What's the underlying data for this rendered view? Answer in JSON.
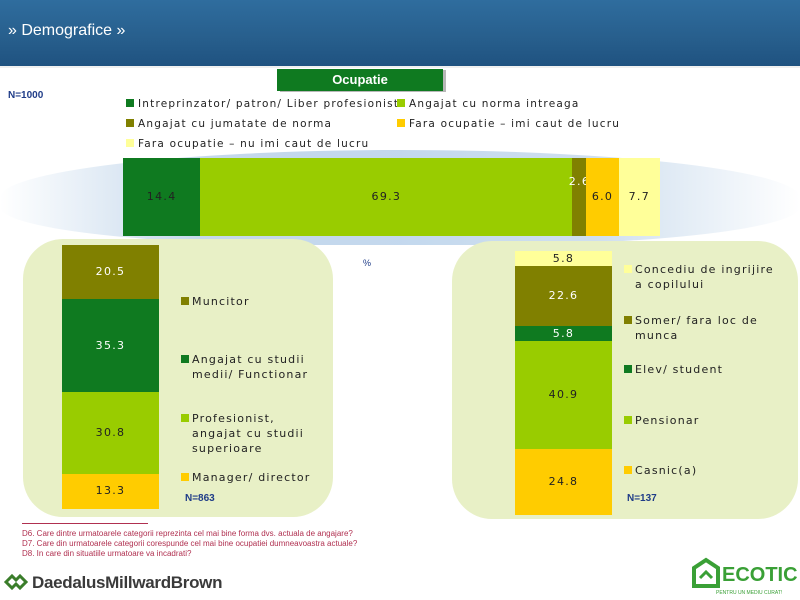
{
  "header": {
    "title": "» Demografice »"
  },
  "chart_data": [
    {
      "type": "bar",
      "orientation": "horizontal-stacked",
      "title": "Ocupatie",
      "n_label": "N=1000",
      "categories": [
        "Ocupatie"
      ],
      "series": [
        {
          "name": "Intreprinzator/ patron/ Liber profesionist",
          "color": "#0f7a20",
          "values": [
            14.4
          ],
          "label": "14.4"
        },
        {
          "name": "Angajat cu norma intreaga",
          "color": "#99cc00",
          "values": [
            69.3
          ],
          "label": "69.3"
        },
        {
          "name": "Angajat cu jumatate de norma",
          "color": "#808000",
          "values": [
            2.6
          ],
          "label": "2.6"
        },
        {
          "name": "Fara ocupatie – imi caut de lucru",
          "color": "#ffcc00",
          "values": [
            6.0
          ],
          "label": "6.0"
        },
        {
          "name": "Fara ocupatie – nu imi caut de lucru",
          "color": "#ffff99",
          "values": [
            7.7
          ],
          "label": "7.7"
        }
      ],
      "unit_label": "%"
    },
    {
      "type": "bar",
      "orientation": "vertical-stacked",
      "n_label": "N=863",
      "series": [
        {
          "name": "Manager/ director",
          "color": "#ffcc00",
          "values": [
            13.3
          ],
          "label": "13.3"
        },
        {
          "name": "Profesionist, angajat cu studii superioare",
          "color": "#99cc00",
          "values": [
            30.8
          ],
          "label": "30.8"
        },
        {
          "name": "Angajat cu studii medii/ Functionar",
          "color": "#0f7a20",
          "values": [
            35.3
          ],
          "label": "35.3"
        },
        {
          "name": "Muncitor",
          "color": "#808000",
          "values": [
            20.5
          ],
          "label": "20.5"
        }
      ]
    },
    {
      "type": "bar",
      "orientation": "vertical-stacked",
      "n_label": "N=137",
      "series": [
        {
          "name": "Casnic(a)",
          "color": "#ffcc00",
          "values": [
            24.8
          ],
          "label": "24.8"
        },
        {
          "name": "Pensionar",
          "color": "#99cc00",
          "values": [
            40.9
          ],
          "label": "40.9"
        },
        {
          "name": "Elev/ student",
          "color": "#0f7a20",
          "values": [
            5.8
          ],
          "label": "5.8"
        },
        {
          "name": "Somer/ fara loc de munca",
          "color": "#808000",
          "values": [
            22.6
          ],
          "label": "22.6"
        },
        {
          "name": "Concediu de ingrijire a copilului",
          "color": "#ffff99",
          "values": [
            5.8
          ],
          "label": "5.8"
        }
      ]
    }
  ],
  "legend_top": [
    {
      "label": "Intreprinzator/ patron/ Liber profesionist",
      "color": "#0f7a20"
    },
    {
      "label": "Angajat cu norma intreaga",
      "color": "#99cc00"
    },
    {
      "label": "Angajat cu jumatate de norma",
      "color": "#808000"
    },
    {
      "label": "Fara ocupatie – imi caut de lucru",
      "color": "#ffcc00"
    },
    {
      "label": "Fara ocupatie – nu imi caut de lucru",
      "color": "#ffff99"
    }
  ],
  "legend_left": [
    {
      "label": "Muncitor",
      "color": "#808000"
    },
    {
      "label": "Angajat cu studii medii/ Functionar",
      "color": "#0f7a20"
    },
    {
      "label": "Profesionist, angajat cu studii superioare",
      "color": "#99cc00"
    },
    {
      "label": "Manager/ director",
      "color": "#ffcc00"
    }
  ],
  "legend_right": [
    {
      "label": "Concediu de ingrijire a copilului",
      "color": "#ffff99"
    },
    {
      "label": "Somer/ fara loc de munca",
      "color": "#808000"
    },
    {
      "label": "Elev/ student",
      "color": "#0f7a20"
    },
    {
      "label": "Pensionar",
      "color": "#99cc00"
    },
    {
      "label": "Casnic(a)",
      "color": "#ffcc00"
    }
  ],
  "footnotes": [
    "D6. Care dintre urmatoarele categorii reprezinta cel mai bine forma dvs. actuala de angajare?",
    "D7. Care din urmatoarele categorii corespunde cel mai bine ocupatiei dumneavoastra actuale?",
    "D8.  In care din situatiile urmatoare va incadrati?"
  ],
  "logos": {
    "left": "DaedalusMillwardBrown",
    "right": "ECOTIC",
    "right_tagline": "PENTRU UN MEDIU CURAT!"
  }
}
